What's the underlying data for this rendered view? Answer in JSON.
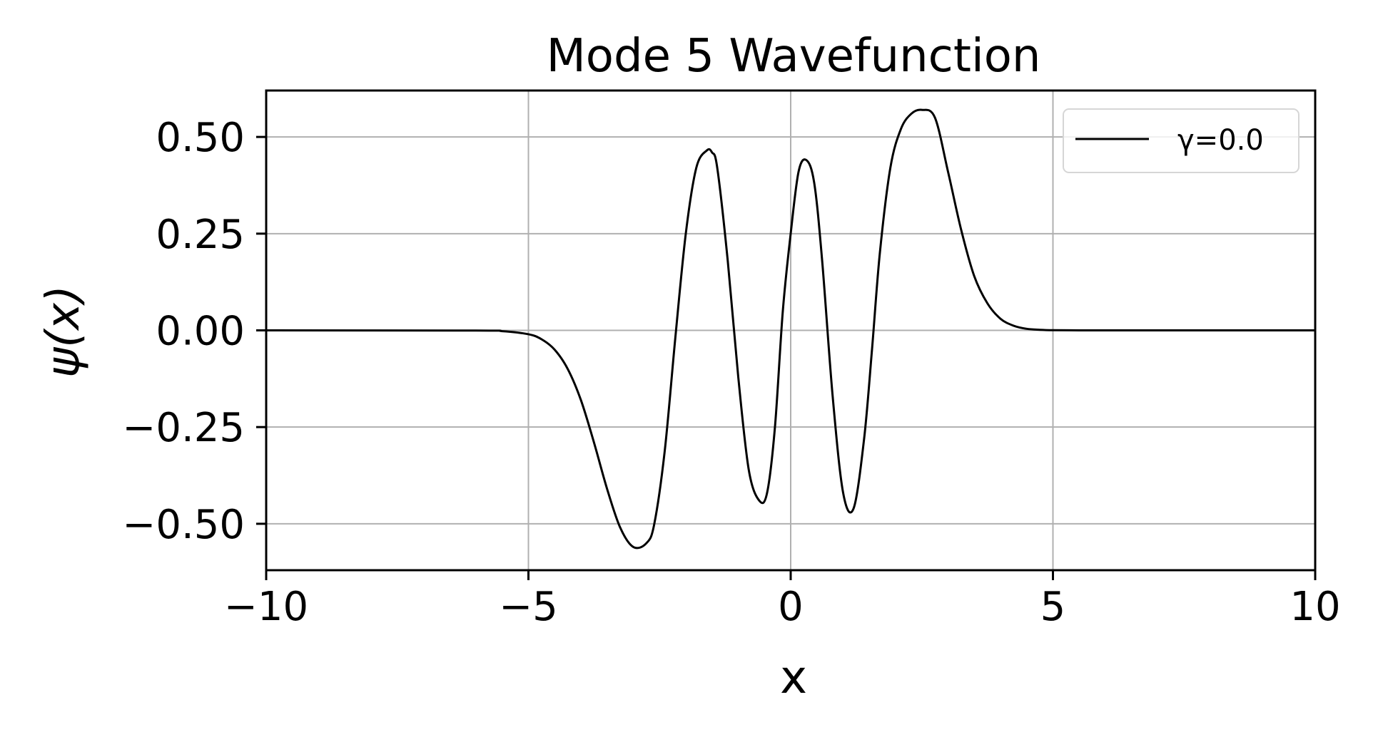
{
  "chart_data": {
    "type": "line",
    "title": "Mode 5 Wavefunction",
    "xlabel": "x",
    "ylabel": "ψ(x)",
    "xlim": [
      -10,
      10
    ],
    "ylim": [
      -0.62,
      0.62
    ],
    "x_ticks": [
      -10,
      -5,
      0,
      5,
      10
    ],
    "x_tick_labels": [
      "−10",
      "−5",
      "0",
      "5",
      "10"
    ],
    "y_ticks": [
      0.5,
      0.25,
      0,
      -0.25,
      -0.5
    ],
    "y_tick_labels": [
      "0.50",
      "0.25",
      "0.00",
      "−0.25",
      "−0.50"
    ],
    "grid": true,
    "legend_position": "top-right",
    "series": [
      {
        "name": "γ=0.0",
        "color": "#000000",
        "x": [
          -10,
          -6,
          -5.5,
          -5,
          -4.75,
          -4.5,
          -4.25,
          -4,
          -3.75,
          -3.5,
          -3.25,
          -3,
          -2.75,
          -2.6,
          -2.4,
          -2.2,
          -2,
          -1.8,
          -1.6,
          -1.5,
          -1.4,
          -1.2,
          -1,
          -0.8,
          -0.6,
          -0.45,
          -0.3,
          -0.15,
          0,
          0.15,
          0.3,
          0.45,
          0.6,
          0.8,
          1,
          1.2,
          1.4,
          1.55,
          1.7,
          1.9,
          2.1,
          2.3,
          2.5,
          2.75,
          3,
          3.25,
          3.5,
          3.75,
          4,
          4.25,
          4.5,
          4.75,
          5,
          5.5,
          6,
          10
        ],
        "y": [
          0,
          -0.0005,
          -0.002,
          -0.01,
          -0.023,
          -0.05,
          -0.1,
          -0.18,
          -0.29,
          -0.41,
          -0.51,
          -0.56,
          -0.55,
          -0.5,
          -0.31,
          -0.02,
          0.25,
          0.42,
          0.465,
          0.46,
          0.42,
          0.18,
          -0.12,
          -0.36,
          -0.44,
          -0.42,
          -0.25,
          0.05,
          0.25,
          0.41,
          0.44,
          0.38,
          0.18,
          -0.17,
          -0.42,
          -0.46,
          -0.28,
          -0.05,
          0.2,
          0.42,
          0.52,
          0.56,
          0.57,
          0.55,
          0.41,
          0.26,
          0.14,
          0.07,
          0.03,
          0.012,
          0.004,
          0.0015,
          0.0005,
          0.0001,
          0,
          0
        ]
      }
    ]
  }
}
